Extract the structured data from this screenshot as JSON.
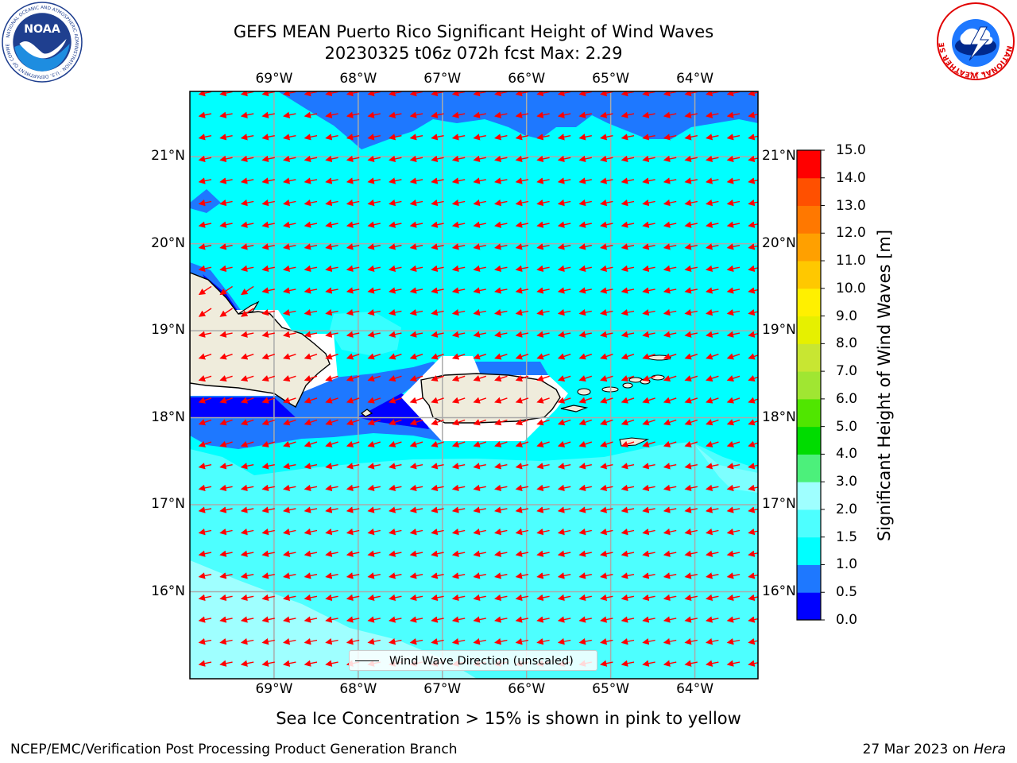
{
  "title": {
    "line1": "GEFS MEAN Puerto Rico Significant Height of Wind Waves",
    "line2": "20230325 t06z 072h fcst   Max: 2.29"
  },
  "map": {
    "lon_ticks": [
      "69°W",
      "68°W",
      "67°W",
      "66°W",
      "65°W",
      "64°W"
    ],
    "lat_ticks": [
      "21°N",
      "20°N",
      "19°N",
      "18°N",
      "17°N",
      "16°N"
    ],
    "lon_values": [
      -69,
      -68,
      -67,
      -66,
      -65,
      -64
    ],
    "lat_values": [
      21,
      20,
      19,
      18,
      17,
      16
    ],
    "lon_range": [
      -70,
      -63.25
    ],
    "lat_range": [
      15,
      21.75
    ],
    "gridlines": true,
    "vector_field": "wind wave direction (red arrows), mostly easterly, pointing west",
    "land_color": "#efecdc",
    "wave_colors": {
      "0.5-1.0": "#1e78ff",
      "1.0-1.5": "#00ffff",
      "1.5-2.0": "#4dffff",
      "2.0-3.0": "#9fffff",
      "0.0-0.5": "#0000ff"
    },
    "legend": {
      "label": "Wind Wave Direction (unscaled)"
    }
  },
  "colorbar": {
    "label": "Significant Height of Wind Waves [m]",
    "ticks": [
      "15.0",
      "14.0",
      "13.0",
      "12.0",
      "11.0",
      "10.0",
      "9.0",
      "8.0",
      "7.0",
      "6.0",
      "5.0",
      "4.0",
      "3.0",
      "2.0",
      "1.5",
      "1.0",
      "0.5",
      "0.0"
    ],
    "levels": [
      0.0,
      0.5,
      1.0,
      1.5,
      2.0,
      3.0,
      4.0,
      5.0,
      6.0,
      7.0,
      8.0,
      9.0,
      10.0,
      11.0,
      12.0,
      13.0,
      14.0,
      15.0
    ],
    "colors": [
      "#0000ff",
      "#1e78ff",
      "#00ffff",
      "#4dffff",
      "#9fffff",
      "#4cf07b",
      "#00dc00",
      "#50e600",
      "#a0e632",
      "#c8e632",
      "#e6f000",
      "#fff000",
      "#ffc800",
      "#ffa000",
      "#ff7800",
      "#ff5000",
      "#ff0000"
    ]
  },
  "caption": "Sea Ice Concentration > 15% is shown in pink to yellow",
  "footer": {
    "left": "NCEP/EMC/Verification Post Processing Product Generation Branch",
    "right_prefix": "27 Mar 2023 on ",
    "right_host": "Hera"
  },
  "logos": {
    "left": "noaa-logo",
    "right": "nws-logo",
    "noaa_text": "NOAA",
    "noaa_ring": "NATIONAL OCEANIC AND ATMOSPHERIC ADMINISTRATION · U.S. DEPARTMENT OF COMMERCE",
    "nws_ring": "NATIONAL WEATHER SERVICE"
  }
}
